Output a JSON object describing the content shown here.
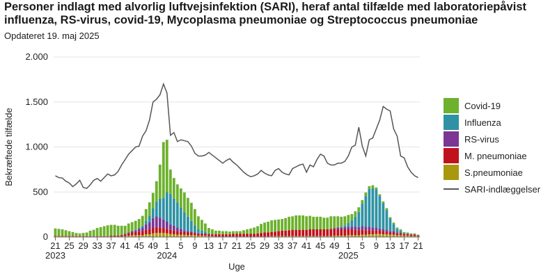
{
  "title": "Personer indlagt med alvorlig luftvejsinfektion (SARI), heraf antal tilfælde med laboratoriepåvist influenza, RS-virus, covid-19, Mycoplasma pneumoniae og Streptococcus pneumoniae",
  "subtitle": "Opdateret 19. maj 2025",
  "chart_data": {
    "type": "bar",
    "stacked": true,
    "xlabel": "Uge",
    "ylabel": "Bekræftede tilfælde",
    "ylim": [
      0,
      2000
    ],
    "yticks": [
      {
        "value": 0,
        "label": "0"
      },
      {
        "value": 500,
        "label": "500"
      },
      {
        "value": 1000,
        "label": "1.000"
      },
      {
        "value": 1500,
        "label": "1.500"
      },
      {
        "value": 2000,
        "label": "2.000"
      }
    ],
    "xticks": [
      {
        "index": 0,
        "label": "21",
        "year": "2023"
      },
      {
        "index": 4,
        "label": "25"
      },
      {
        "index": 8,
        "label": "29"
      },
      {
        "index": 12,
        "label": "33"
      },
      {
        "index": 16,
        "label": "37"
      },
      {
        "index": 20,
        "label": "41"
      },
      {
        "index": 24,
        "label": "45"
      },
      {
        "index": 28,
        "label": "49"
      },
      {
        "index": 32,
        "label": "1",
        "year": "2024"
      },
      {
        "index": 36,
        "label": "5"
      },
      {
        "index": 40,
        "label": "9"
      },
      {
        "index": 44,
        "label": "13"
      },
      {
        "index": 48,
        "label": "17"
      },
      {
        "index": 52,
        "label": "21"
      },
      {
        "index": 56,
        "label": "25"
      },
      {
        "index": 60,
        "label": "29"
      },
      {
        "index": 64,
        "label": "33"
      },
      {
        "index": 68,
        "label": "37"
      },
      {
        "index": 72,
        "label": "41"
      },
      {
        "index": 76,
        "label": "45"
      },
      {
        "index": 80,
        "label": "49"
      },
      {
        "index": 84,
        "label": "1",
        "year": "2025"
      },
      {
        "index": 88,
        "label": "5"
      },
      {
        "index": 92,
        "label": "9"
      },
      {
        "index": 96,
        "label": "13"
      },
      {
        "index": 100,
        "label": "17"
      },
      {
        "index": 104,
        "label": "21"
      }
    ],
    "week_count": 105,
    "legend_position": "right",
    "series": [
      {
        "name": "S.pneumoniae",
        "color": "#a9980f",
        "values": [
          10,
          10,
          10,
          10,
          10,
          10,
          5,
          5,
          5,
          5,
          5,
          5,
          5,
          5,
          5,
          5,
          5,
          5,
          5,
          5,
          10,
          15,
          20,
          20,
          20,
          20,
          30,
          30,
          40,
          45,
          45,
          45,
          40,
          35,
          30,
          25,
          25,
          25,
          20,
          20,
          20,
          15,
          15,
          15,
          10,
          10,
          5,
          5,
          5,
          5,
          5,
          5,
          5,
          5,
          5,
          5,
          5,
          5,
          5,
          5,
          5,
          5,
          10,
          10,
          10,
          10,
          10,
          10,
          10,
          10,
          10,
          10,
          10,
          10,
          10,
          10,
          10,
          10,
          10,
          10,
          15,
          15,
          15,
          15,
          20,
          20,
          20,
          20,
          25,
          25,
          30,
          30,
          35,
          35,
          30,
          30,
          25,
          25,
          20,
          20,
          15,
          15,
          10,
          10,
          10
        ]
      },
      {
        "name": "M. pneumoniae",
        "color": "#c0121c",
        "values": [
          5,
          5,
          5,
          5,
          5,
          5,
          5,
          5,
          5,
          5,
          5,
          5,
          5,
          5,
          5,
          5,
          10,
          10,
          10,
          15,
          20,
          25,
          30,
          35,
          40,
          45,
          50,
          55,
          60,
          65,
          60,
          55,
          50,
          45,
          45,
          40,
          35,
          30,
          30,
          30,
          25,
          20,
          20,
          20,
          20,
          20,
          25,
          25,
          25,
          25,
          25,
          30,
          30,
          30,
          30,
          30,
          30,
          30,
          35,
          40,
          45,
          45,
          45,
          50,
          55,
          60,
          60,
          65,
          70,
          70,
          70,
          70,
          70,
          75,
          75,
          75,
          75,
          75,
          75,
          75,
          75,
          75,
          70,
          70,
          65,
          65,
          60,
          55,
          55,
          50,
          45,
          40,
          40,
          35,
          35,
          30,
          25,
          25,
          20,
          20,
          15,
          15,
          15,
          15,
          10
        ]
      },
      {
        "name": "RS-virus",
        "color": "#7b3793",
        "values": [
          0,
          0,
          0,
          0,
          0,
          0,
          0,
          0,
          0,
          0,
          0,
          0,
          0,
          0,
          0,
          0,
          0,
          0,
          0,
          5,
          5,
          10,
          15,
          20,
          30,
          40,
          60,
          80,
          110,
          120,
          110,
          95,
          80,
          60,
          50,
          40,
          30,
          20,
          15,
          10,
          5,
          5,
          5,
          5,
          0,
          0,
          0,
          0,
          0,
          0,
          0,
          0,
          0,
          0,
          0,
          0,
          0,
          0,
          0,
          0,
          0,
          0,
          0,
          0,
          0,
          0,
          0,
          0,
          0,
          0,
          0,
          0,
          0,
          0,
          0,
          0,
          0,
          0,
          0,
          5,
          10,
          15,
          20,
          25,
          30,
          30,
          35,
          35,
          40,
          40,
          40,
          35,
          30,
          25,
          20,
          20,
          15,
          15,
          10,
          10,
          5,
          5,
          5,
          5,
          0
        ]
      },
      {
        "name": "Influenza",
        "color": "#2f92a4",
        "values": [
          0,
          0,
          0,
          0,
          0,
          0,
          0,
          0,
          0,
          0,
          0,
          0,
          0,
          0,
          0,
          0,
          0,
          0,
          0,
          0,
          0,
          0,
          0,
          5,
          10,
          20,
          40,
          70,
          110,
          160,
          210,
          240,
          330,
          340,
          300,
          280,
          240,
          200,
          160,
          120,
          80,
          50,
          30,
          20,
          10,
          5,
          0,
          0,
          0,
          0,
          0,
          0,
          0,
          0,
          0,
          0,
          0,
          0,
          0,
          0,
          0,
          0,
          0,
          0,
          0,
          0,
          0,
          0,
          0,
          0,
          0,
          0,
          0,
          0,
          0,
          0,
          0,
          0,
          0,
          0,
          0,
          5,
          10,
          20,
          40,
          70,
          110,
          170,
          250,
          340,
          420,
          440,
          420,
          360,
          290,
          220,
          140,
          80,
          40,
          20,
          10,
          5,
          0,
          0,
          0
        ]
      },
      {
        "name": "Covid-19",
        "color": "#6db12d",
        "values": [
          80,
          75,
          70,
          60,
          50,
          40,
          35,
          30,
          35,
          40,
          60,
          70,
          90,
          100,
          110,
          120,
          120,
          120,
          110,
          100,
          90,
          100,
          100,
          100,
          100,
          110,
          130,
          150,
          170,
          230,
          380,
          620,
          580,
          270,
          230,
          200,
          210,
          220,
          210,
          200,
          180,
          140,
          120,
          90,
          60,
          50,
          40,
          40,
          35,
          35,
          30,
          30,
          30,
          30,
          40,
          50,
          60,
          70,
          80,
          100,
          110,
          120,
          130,
          130,
          130,
          130,
          140,
          150,
          150,
          160,
          160,
          160,
          150,
          150,
          140,
          140,
          140,
          130,
          130,
          140,
          130,
          120,
          110,
          100,
          90,
          70,
          60,
          50,
          40,
          40,
          30,
          30,
          25,
          20,
          20,
          20,
          15,
          15,
          15,
          15,
          10,
          10,
          10,
          10,
          5
        ]
      },
      {
        "name": "SARI-indlæggelser",
        "color": "#555555",
        "type": "line",
        "values": [
          680,
          660,
          655,
          620,
          600,
          560,
          590,
          630,
          550,
          540,
          580,
          630,
          650,
          620,
          660,
          700,
          680,
          690,
          730,
          800,
          860,
          920,
          960,
          1000,
          1010,
          1120,
          1180,
          1300,
          1500,
          1530,
          1580,
          1700,
          1600,
          1130,
          1160,
          1060,
          1080,
          1070,
          1060,
          1010,
          930,
          900,
          900,
          910,
          940,
          910,
          880,
          850,
          820,
          850,
          870,
          830,
          800,
          760,
          720,
          690,
          670,
          680,
          700,
          740,
          710,
          690,
          680,
          740,
          760,
          720,
          700,
          690,
          760,
          780,
          800,
          810,
          720,
          800,
          780,
          860,
          920,
          900,
          820,
          800,
          800,
          820,
          820,
          840,
          900,
          1000,
          1020,
          1220,
          1010,
          900,
          1080,
          1100,
          1200,
          1300,
          1450,
          1420,
          1400,
          1200,
          1120,
          900,
          880,
          780,
          720,
          680,
          660
        ]
      }
    ]
  }
}
